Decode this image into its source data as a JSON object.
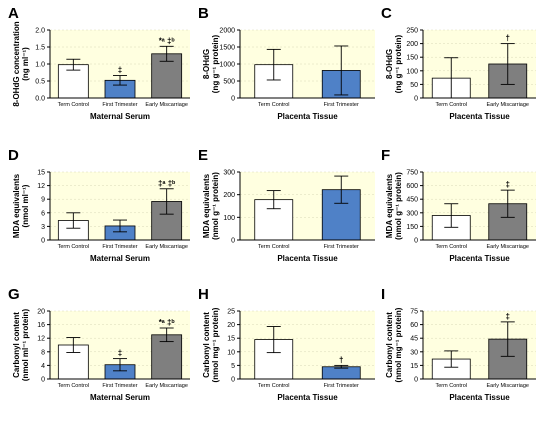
{
  "colors": {
    "term": "#ffffff",
    "first": "#4f81c7",
    "early": "#7f7f7f",
    "plot_bg": "#ffffe0"
  },
  "chart_data": [
    {
      "letter": "A",
      "type": "bar",
      "ylabel": "8-OHdG concentration (ng ml⁻¹)",
      "xlabel": "Maternal Serum",
      "ylim": [
        0,
        2.0
      ],
      "yticks": [
        "0.0",
        "0.5",
        "1.0",
        "1.5",
        "2.0"
      ],
      "categories": [
        "Term Control",
        "First Trimester",
        "Early Miscarriage"
      ],
      "values": [
        0.98,
        0.52,
        1.3
      ],
      "errors": [
        0.16,
        0.14,
        0.22
      ],
      "annotations": [
        "",
        "‡",
        "*ᵃ ‡ᵇ"
      ]
    },
    {
      "letter": "B",
      "type": "bar",
      "ylabel": "8-OHdG (ng g⁻¹ protein)",
      "xlabel": "Placenta Tissue",
      "ylim": [
        0,
        2000
      ],
      "yticks": [
        "0",
        "500",
        "1000",
        "1500",
        "2000"
      ],
      "categories": [
        "Term Control",
        "First Trimester"
      ],
      "values": [
        980,
        810
      ],
      "errors": [
        450,
        720
      ],
      "annotations": [
        "",
        ""
      ]
    },
    {
      "letter": "C",
      "type": "bar",
      "ylabel": "8-OHdG (ng g⁻¹ protein)",
      "xlabel": "Placenta Tissue",
      "ylim": [
        0,
        250
      ],
      "yticks": [
        "0",
        "50",
        "100",
        "150",
        "200",
        "250"
      ],
      "categories": [
        "Term Control",
        "Early Miscarriage"
      ],
      "values": [
        73,
        125
      ],
      "errors": [
        75,
        75
      ],
      "annotations": [
        "",
        "†"
      ]
    },
    {
      "letter": "D",
      "type": "bar",
      "ylabel": "MDA equivalents (nmol ml⁻¹)",
      "xlabel": "Maternal Serum",
      "ylim": [
        0,
        15
      ],
      "yticks": [
        "0",
        "3",
        "6",
        "9",
        "12",
        "15"
      ],
      "categories": [
        "Term Control",
        "First Trimester",
        "Early Miscarriage"
      ],
      "values": [
        4.3,
        3.1,
        8.5
      ],
      "errors": [
        1.7,
        1.3,
        2.8
      ],
      "annotations": [
        "",
        "",
        "‡ᵃ ‡ᵇ"
      ]
    },
    {
      "letter": "E",
      "type": "bar",
      "ylabel": "MDA equivalents (nmol g⁻¹ protein)",
      "xlabel": "Placenta Tissue",
      "ylim": [
        0,
        300
      ],
      "yticks": [
        "0",
        "100",
        "200",
        "300"
      ],
      "categories": [
        "Term Control",
        "First Trimester"
      ],
      "values": [
        178,
        222
      ],
      "errors": [
        40,
        60
      ],
      "annotations": [
        "",
        ""
      ]
    },
    {
      "letter": "F",
      "type": "bar",
      "ylabel": "MDA equivalents (nmol g⁻¹ protein)",
      "xlabel": "Placenta Tissue",
      "ylim": [
        0,
        750
      ],
      "yticks": [
        "0",
        "150",
        "300",
        "450",
        "600",
        "750"
      ],
      "categories": [
        "Term Control",
        "Early Miscarriage"
      ],
      "values": [
        270,
        400
      ],
      "errors": [
        130,
        150
      ],
      "annotations": [
        "",
        "‡"
      ]
    },
    {
      "letter": "G",
      "type": "bar",
      "ylabel": "Carbonyl content (nmol ml⁻¹ protein)",
      "xlabel": "Maternal Serum",
      "ylim": [
        0,
        20
      ],
      "yticks": [
        "0",
        "4",
        "8",
        "12",
        "16",
        "20"
      ],
      "categories": [
        "Term Control",
        "First Trimester",
        "Early Miscarriage"
      ],
      "values": [
        10,
        4.2,
        13
      ],
      "errors": [
        2.2,
        1.8,
        2.0
      ],
      "annotations": [
        "",
        "‡",
        "*ᵃ ‡ᵇ"
      ]
    },
    {
      "letter": "H",
      "type": "bar",
      "ylabel": "Carbonyl content (nmol mg⁻¹ protein)",
      "xlabel": "Placenta Tissue",
      "ylim": [
        0,
        25
      ],
      "yticks": [
        "0",
        "5",
        "10",
        "15",
        "20",
        "25"
      ],
      "categories": [
        "Term Control",
        "First Trimester"
      ],
      "values": [
        14.5,
        4.5
      ],
      "errors": [
        4.8,
        0.5
      ],
      "annotations": [
        "",
        "†"
      ]
    },
    {
      "letter": "I",
      "type": "bar",
      "ylabel": "Carbonyl content (nmol mg⁻¹ protein)",
      "xlabel": "Placenta Tissue",
      "ylim": [
        0,
        75
      ],
      "yticks": [
        "0",
        "15",
        "30",
        "45",
        "60",
        "75"
      ],
      "categories": [
        "Term Control",
        "Early Miscarriage"
      ],
      "values": [
        22,
        44
      ],
      "errors": [
        9,
        19
      ],
      "annotations": [
        "",
        "‡"
      ]
    }
  ]
}
